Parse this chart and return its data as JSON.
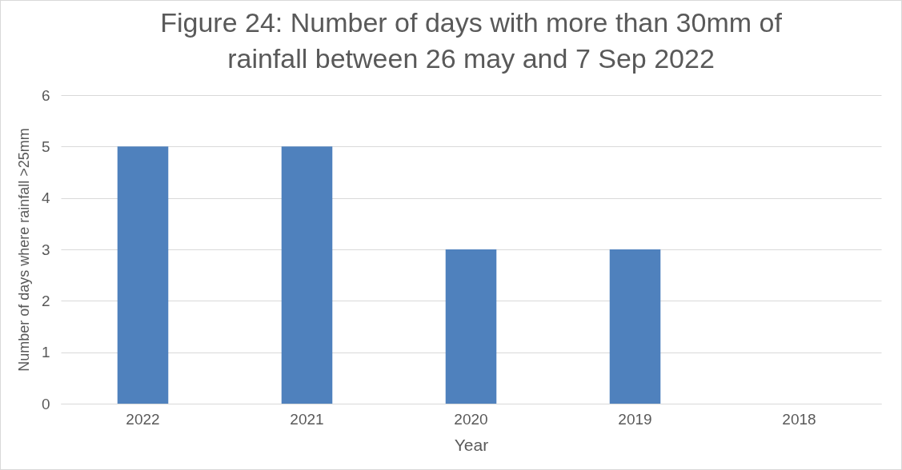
{
  "chart_data": {
    "type": "bar",
    "title": "Figure 24: Number of days with more than 30mm of rainfall between 26 may and 7 Sep 2022",
    "xlabel": "Year",
    "ylabel": "Number of days where rainfall >25mm",
    "categories": [
      "2022",
      "2021",
      "2020",
      "2019",
      "2018"
    ],
    "values": [
      5,
      5,
      3,
      3,
      0
    ],
    "color": "#4f81bd",
    "ylim": [
      0,
      6
    ],
    "yticks": [
      0,
      1,
      2,
      3,
      4,
      5,
      6
    ],
    "grid": "y"
  }
}
